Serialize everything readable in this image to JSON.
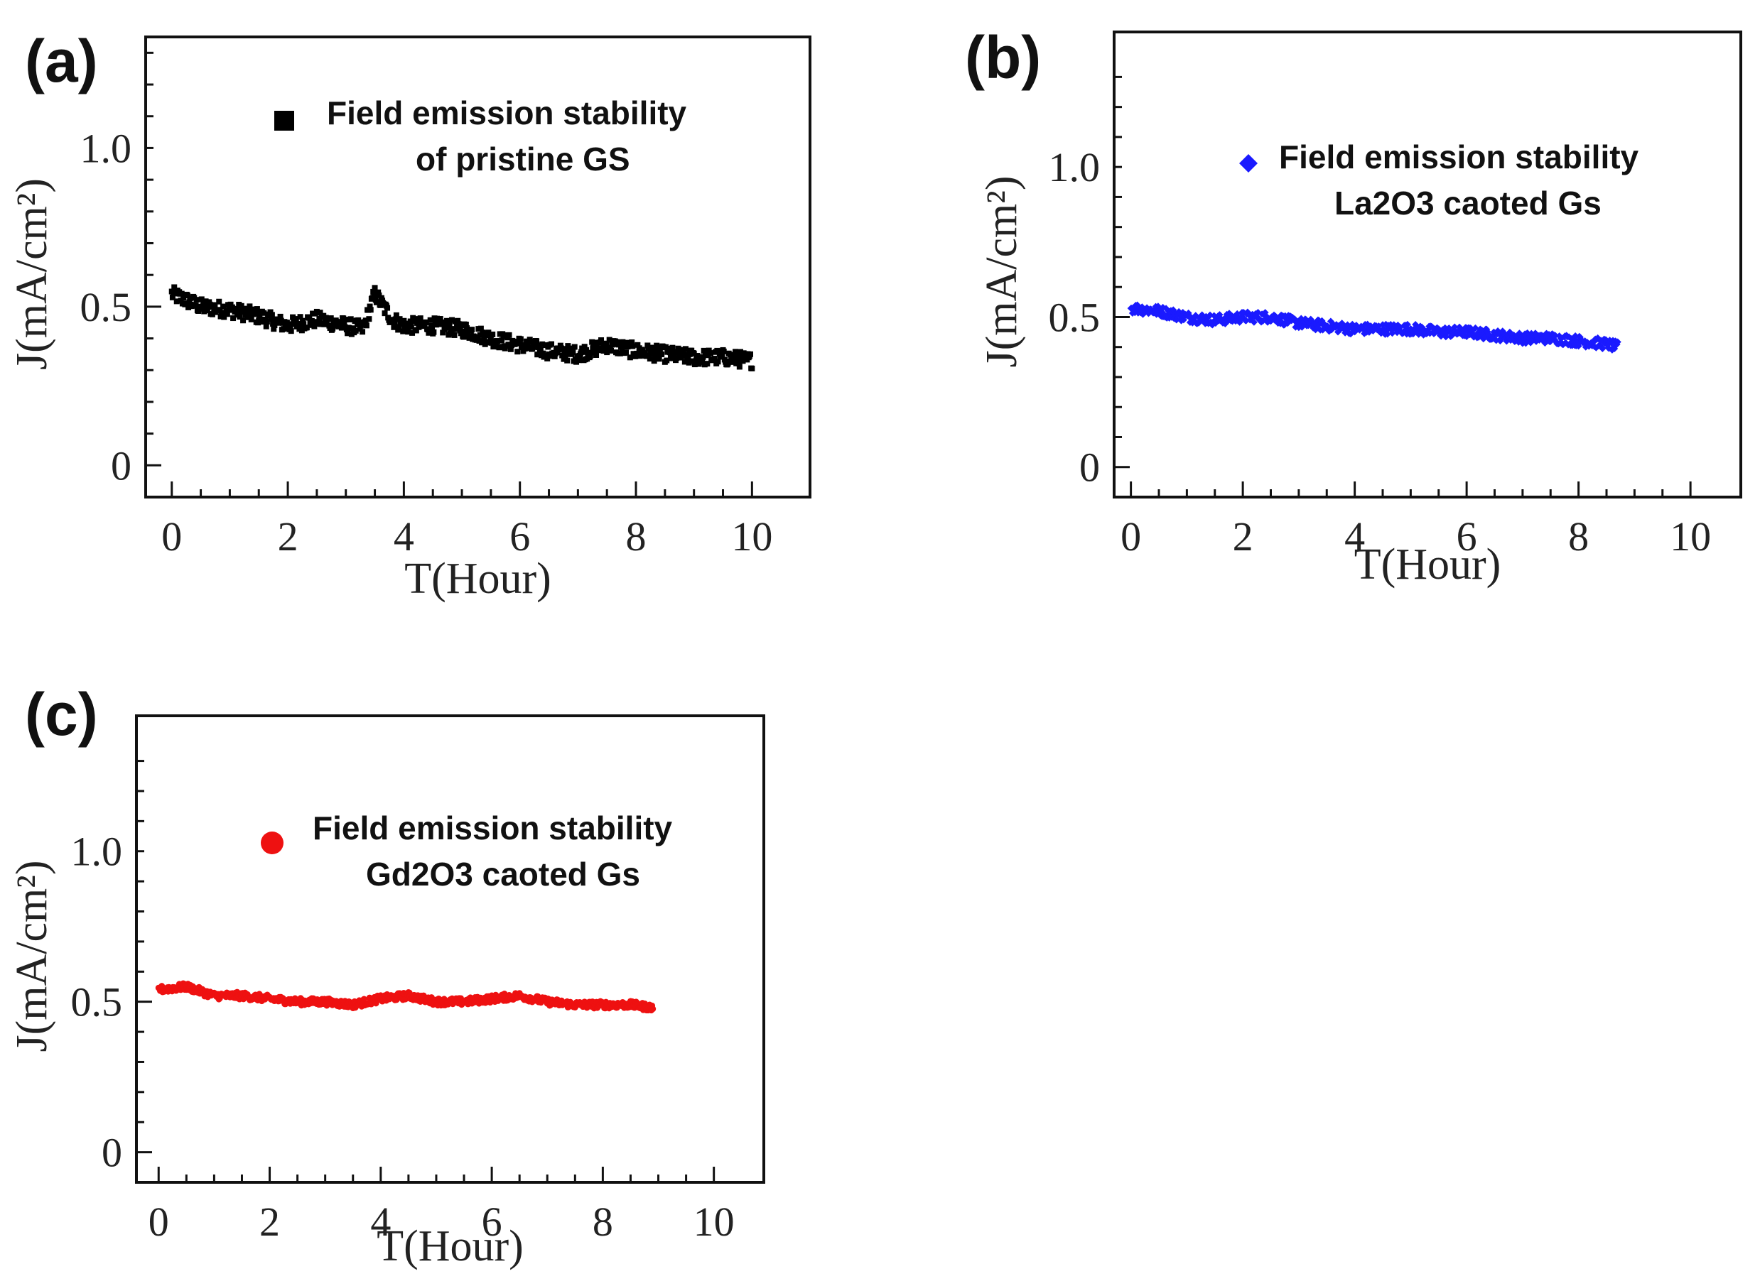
{
  "chart_data": [
    {
      "type": "scatter",
      "panel_label": "(a)",
      "xlabel": "T(Hour)",
      "ylabel": "J(mA/cm²)",
      "xlim": [
        -0.45,
        11.0
      ],
      "ylim": [
        -0.1,
        1.35
      ],
      "xticks": [
        "0",
        "2",
        "4",
        "6",
        "8",
        "10"
      ],
      "xtick_values": [
        0,
        2,
        4,
        6,
        8,
        10
      ],
      "yticks": [
        "0",
        "0.5",
        "1.0"
      ],
      "ytick_values": [
        0,
        0.5,
        1.0
      ],
      "legend": [
        "Field emission stability",
        "of pristine GS"
      ],
      "marker": "square",
      "color": "#000000",
      "series": [
        {
          "name": "Field emission stability of pristine GS",
          "x": [
            0,
            0.5,
            1.0,
            1.5,
            2.0,
            2.5,
            3.0,
            3.3,
            3.5,
            3.8,
            4.0,
            4.5,
            5.0,
            5.5,
            6.0,
            6.5,
            7.0,
            7.5,
            8.0,
            8.5,
            9.0,
            9.5,
            10.0
          ],
          "y": [
            0.54,
            0.5,
            0.49,
            0.47,
            0.44,
            0.46,
            0.44,
            0.43,
            0.54,
            0.46,
            0.44,
            0.44,
            0.43,
            0.4,
            0.38,
            0.36,
            0.35,
            0.38,
            0.36,
            0.35,
            0.34,
            0.34,
            0.33
          ],
          "noise": 0.025
        }
      ]
    },
    {
      "type": "scatter",
      "panel_label": "(b)",
      "xlabel": "T(Hour)",
      "ylabel": "J(mA/cm²)",
      "xlim": [
        -0.3,
        10.9
      ],
      "ylim": [
        -0.1,
        1.45
      ],
      "xticks": [
        "0",
        "2",
        "4",
        "6",
        "8",
        "10"
      ],
      "xtick_values": [
        0,
        2,
        4,
        6,
        8,
        10
      ],
      "yticks": [
        "0",
        "0.5",
        "1.0"
      ],
      "ytick_values": [
        0,
        0.5,
        1.0
      ],
      "legend": [
        "Field emission stability",
        "La2O3 caoted Gs"
      ],
      "marker": "diamond",
      "color": "#1a1aff",
      "series": [
        {
          "name": "Field emission stability La2O3 caoted Gs",
          "x": [
            0,
            0.5,
            1.0,
            1.5,
            2.0,
            2.5,
            3.0,
            3.5,
            4.0,
            4.5,
            5.0,
            5.5,
            6.0,
            6.5,
            7.0,
            7.5,
            8.0,
            8.5,
            8.7
          ],
          "y": [
            0.53,
            0.52,
            0.5,
            0.49,
            0.5,
            0.5,
            0.48,
            0.47,
            0.46,
            0.46,
            0.46,
            0.45,
            0.45,
            0.44,
            0.43,
            0.43,
            0.42,
            0.41,
            0.4
          ],
          "noise": 0.018
        }
      ]
    },
    {
      "type": "scatter",
      "panel_label": "(c)",
      "xlabel": "T(Hour)",
      "ylabel": "J(mA/cm²)",
      "xlim": [
        -0.4,
        10.9
      ],
      "ylim": [
        -0.1,
        1.45
      ],
      "xticks": [
        "0",
        "2",
        "4",
        "6",
        "8",
        "10"
      ],
      "xtick_values": [
        0,
        2,
        4,
        6,
        8,
        10
      ],
      "yticks": [
        "0",
        "0.5",
        "1.0"
      ],
      "ytick_values": [
        0,
        0.5,
        1.0
      ],
      "legend": [
        "Field emission stability",
        "Gd2O3 caoted Gs"
      ],
      "marker": "circle",
      "color": "#ee1111",
      "series": [
        {
          "name": "Field emission stability Gd2O3 caoted Gs",
          "x": [
            0,
            0.5,
            1.0,
            1.5,
            2.0,
            2.5,
            3.0,
            3.5,
            4.0,
            4.5,
            5.0,
            5.5,
            6.0,
            6.5,
            7.0,
            7.5,
            8.0,
            8.5,
            8.9
          ],
          "y": [
            0.54,
            0.55,
            0.52,
            0.52,
            0.51,
            0.5,
            0.5,
            0.49,
            0.51,
            0.52,
            0.5,
            0.5,
            0.51,
            0.52,
            0.5,
            0.49,
            0.49,
            0.49,
            0.48
          ],
          "noise": 0.012
        }
      ]
    }
  ]
}
